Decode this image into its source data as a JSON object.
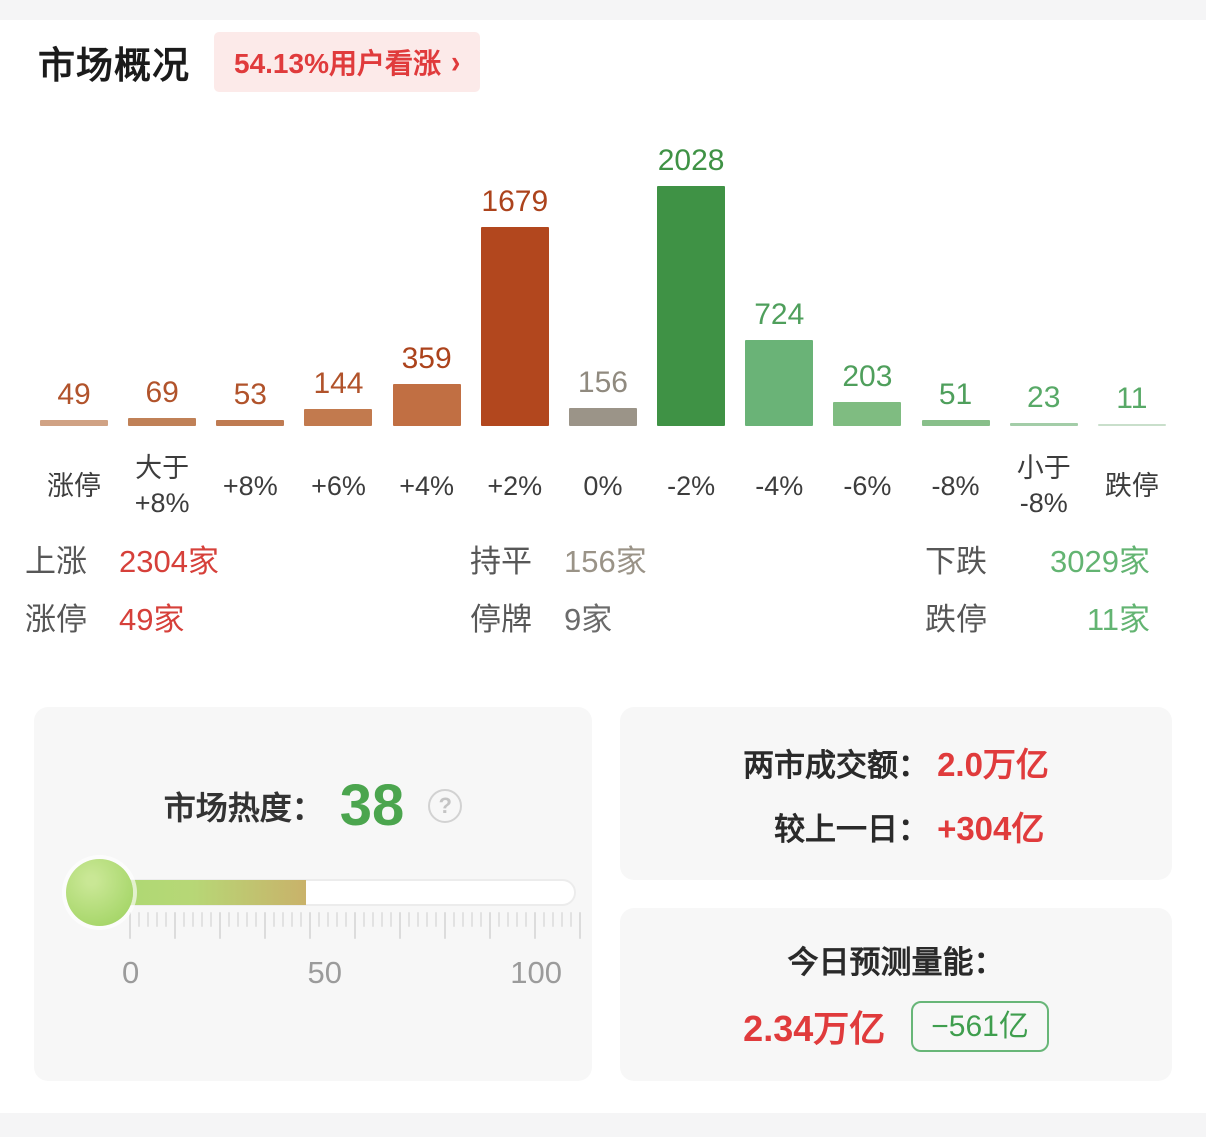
{
  "header": {
    "title": "市场概况",
    "badge_text": "54.13%用户看涨",
    "chevron": "›"
  },
  "chart_data": {
    "type": "bar",
    "categories": [
      "涨停",
      "大于\n+8%",
      "+8%",
      "+6%",
      "+4%",
      "+2%",
      "0%",
      "-2%",
      "-4%",
      "-6%",
      "-8%",
      "小于\n-8%",
      "跌停"
    ],
    "values": [
      49,
      69,
      53,
      144,
      359,
      1679,
      156,
      2028,
      724,
      203,
      51,
      23,
      11
    ],
    "bar_colors": [
      "#d0a284",
      "#c08157",
      "#bf7b52",
      "#c27a4e",
      "#c16f43",
      "#b2471e",
      "#9b9488",
      "#3f9245",
      "#6ab377",
      "#7fbc81",
      "#88bf8a",
      "#a3cda8",
      "#c9dfcb"
    ],
    "value_label_colors": [
      "#b1532b",
      "#b1532b",
      "#b1532b",
      "#b1532b",
      "#ac431c",
      "#ac431c",
      "#908a7f",
      "#3f9245",
      "#4f9f5c",
      "#4f9f5c",
      "#4f9f5c",
      "#58a967",
      "#58a967"
    ],
    "ylim": [
      0,
      2028
    ],
    "grid": false,
    "legend": "none"
  },
  "summary": {
    "up": {
      "label": "上涨",
      "value": "2304家"
    },
    "limit_up": {
      "label": "涨停",
      "value": "49家"
    },
    "flat": {
      "label": "持平",
      "value": "156家"
    },
    "suspended": {
      "label": "停牌",
      "value": "9家"
    },
    "down": {
      "label": "下跌",
      "value": "3029家"
    },
    "limit_down": {
      "label": "跌停",
      "value": "11家"
    }
  },
  "heat": {
    "label": "市场热度：",
    "value": "38",
    "help_icon": "?",
    "scale_min": "0",
    "scale_mid": "50",
    "scale_max": "100",
    "gauge_percent": 38
  },
  "turnover": {
    "row1_label": "两市成交额：",
    "row1_value": "2.0万亿",
    "row2_label": "较上一日：",
    "row2_value": "+304亿"
  },
  "forecast": {
    "title": "今日预测量能：",
    "value": "2.34万亿",
    "delta": "−561亿"
  },
  "colors": {
    "accent_red": "#e03b3c",
    "accent_green": "#4ba54e",
    "badge_bg": "#fceae9",
    "card_bg": "#f7f7f7",
    "flat_gray": "#9a9387",
    "pill_border": "#68b678"
  }
}
